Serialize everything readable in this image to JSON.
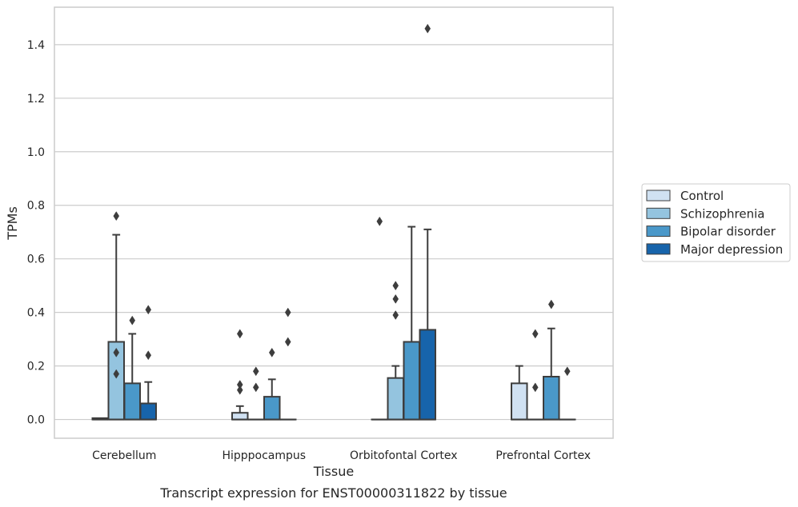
{
  "chart_data": {
    "type": "box",
    "xlabel": "Tissue",
    "ylabel": "TPMs",
    "caption": "Transcript expression for ENST00000311822 by tissue",
    "ylim": [
      -0.07,
      1.54
    ],
    "yticks": [
      "0.0",
      "0.2",
      "0.4",
      "0.6",
      "0.8",
      "1.0",
      "1.2",
      "1.4"
    ],
    "grid": true,
    "legend_position": "right",
    "categories": [
      "Cerebellum",
      "Hipppocampus",
      "Orbitofontal Cortex",
      "Prefrontal Cortex"
    ],
    "series": [
      {
        "name": "Control",
        "color": "#d0e1f2",
        "boxes": [
          {
            "q1": 0.0,
            "median": 0.0,
            "q3": 0.005,
            "whisker_low": 0.0,
            "whisker_high": 0.005,
            "outliers": []
          },
          {
            "q1": 0.0,
            "median": 0.0,
            "q3": 0.025,
            "whisker_low": 0.0,
            "whisker_high": 0.05,
            "outliers": [
              0.32,
              0.13,
              0.11
            ]
          },
          {
            "q1": 0.0,
            "median": 0.0,
            "q3": 0.0,
            "whisker_low": 0.0,
            "whisker_high": 0.0,
            "outliers": [
              0.74
            ]
          },
          {
            "q1": 0.0,
            "median": 0.0,
            "q3": 0.135,
            "whisker_low": 0.0,
            "whisker_high": 0.2,
            "outliers": []
          }
        ]
      },
      {
        "name": "Schizophrenia",
        "color": "#94c4df",
        "boxes": [
          {
            "q1": 0.0,
            "median": 0.0,
            "q3": 0.29,
            "whisker_low": 0.0,
            "whisker_high": 0.69,
            "outliers": [
              0.76,
              0.25,
              0.17
            ]
          },
          {
            "q1": 0.0,
            "median": 0.0,
            "q3": 0.0,
            "whisker_low": 0.0,
            "whisker_high": 0.0,
            "outliers": [
              0.18,
              0.12
            ]
          },
          {
            "q1": 0.0,
            "median": 0.0,
            "q3": 0.155,
            "whisker_low": 0.0,
            "whisker_high": 0.2,
            "outliers": [
              0.5,
              0.45,
              0.39
            ]
          },
          {
            "q1": 0.0,
            "median": 0.0,
            "q3": 0.0,
            "whisker_low": 0.0,
            "whisker_high": 0.0,
            "outliers": [
              0.32,
              0.12
            ]
          }
        ]
      },
      {
        "name": "Bipolar disorder",
        "color": "#4a98c9",
        "boxes": [
          {
            "q1": 0.0,
            "median": 0.0,
            "q3": 0.135,
            "whisker_low": 0.0,
            "whisker_high": 0.32,
            "outliers": [
              0.37
            ]
          },
          {
            "q1": 0.0,
            "median": 0.0,
            "q3": 0.085,
            "whisker_low": 0.0,
            "whisker_high": 0.15,
            "outliers": [
              0.25
            ]
          },
          {
            "q1": 0.0,
            "median": 0.0,
            "q3": 0.29,
            "whisker_low": 0.0,
            "whisker_high": 0.72,
            "outliers": []
          },
          {
            "q1": 0.0,
            "median": 0.0,
            "q3": 0.16,
            "whisker_low": 0.0,
            "whisker_high": 0.34,
            "outliers": [
              0.43
            ]
          }
        ]
      },
      {
        "name": "Major depression",
        "color": "#1764ab",
        "boxes": [
          {
            "q1": 0.0,
            "median": 0.0,
            "q3": 0.06,
            "whisker_low": 0.0,
            "whisker_high": 0.14,
            "outliers": [
              0.41,
              0.24
            ]
          },
          {
            "q1": 0.0,
            "median": 0.0,
            "q3": 0.0,
            "whisker_low": 0.0,
            "whisker_high": 0.0,
            "outliers": [
              0.4,
              0.29
            ]
          },
          {
            "q1": 0.0,
            "median": 0.0,
            "q3": 0.335,
            "whisker_low": 0.0,
            "whisker_high": 0.71,
            "outliers": [
              1.46
            ]
          },
          {
            "q1": 0.0,
            "median": 0.0,
            "q3": 0.0,
            "whisker_low": 0.0,
            "whisker_high": 0.0,
            "outliers": [
              0.18
            ]
          }
        ]
      }
    ]
  }
}
